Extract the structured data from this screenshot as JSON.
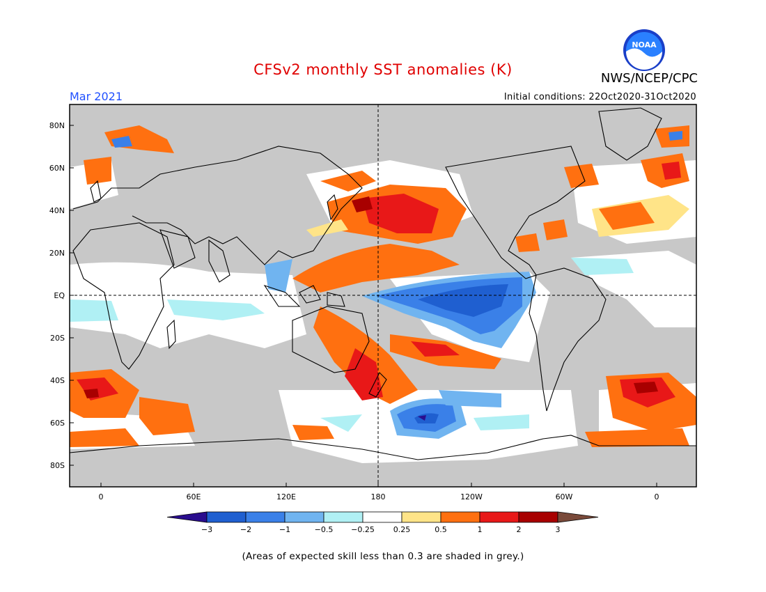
{
  "title": "CFSv2 monthly SST anomalies (K)",
  "agency": "NWS/NCEP/CPC",
  "logo_text": "NOAA",
  "month": "Mar 2021",
  "initial_conditions": "Initial conditions: 22Oct2020-31Oct2020",
  "note": "(Areas of expected skill less than 0.3 are shaded in grey.)",
  "lat_labels": [
    "80N",
    "60N",
    "40N",
    "20N",
    "EQ",
    "20S",
    "40S",
    "60S",
    "80S"
  ],
  "lon_labels": [
    "0",
    "60E",
    "120E",
    "180",
    "120W",
    "60W",
    "0"
  ],
  "colorbar": {
    "ticks": [
      "-3",
      "-2",
      "-1",
      "-0.5",
      "-0.25",
      "0.25",
      "0.5",
      "1",
      "2",
      "3"
    ],
    "colors": [
      "#2a0d8e",
      "#1f5fd0",
      "#3a80e8",
      "#70b4f0",
      "#b0f0f4",
      "#ffffff",
      "#ffe488",
      "#ff7010",
      "#e81818",
      "#a80000",
      "#7a4a3a"
    ]
  },
  "colors": {
    "land": "#c8c8c8",
    "title": "#e00000",
    "month": "#2050ff"
  }
}
